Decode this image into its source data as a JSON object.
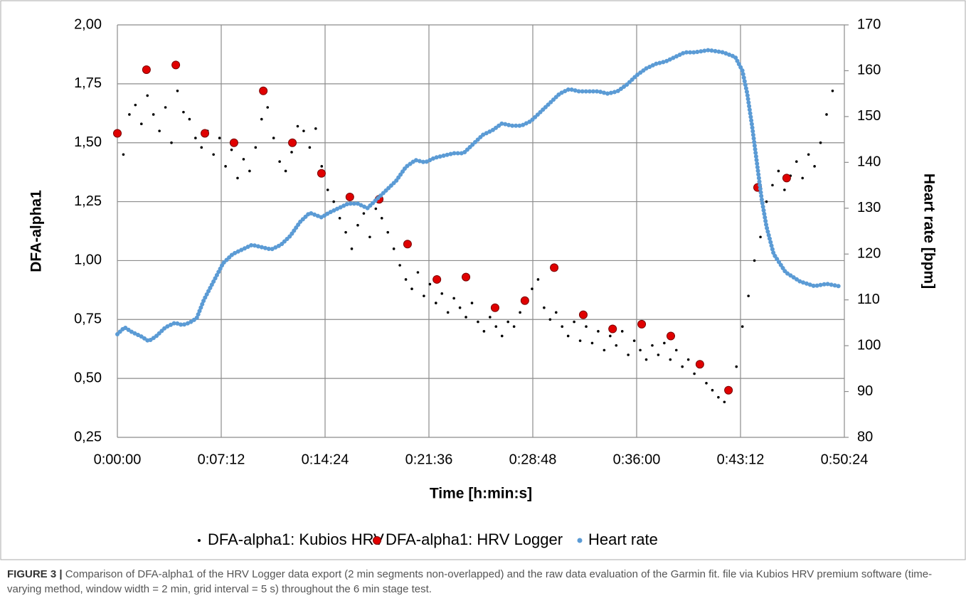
{
  "chart_data": {
    "type": "scatter",
    "x_label": "Time [h:min:s]",
    "y_label": "DFA-alpha1",
    "y2_label": "Heart rate [bpm]",
    "xlim": [
      0,
      3024
    ],
    "xticks": [
      {
        "value": 0,
        "label": "0:00:00"
      },
      {
        "value": 432,
        "label": "0:07:12"
      },
      {
        "value": 864,
        "label": "0:14:24"
      },
      {
        "value": 1296,
        "label": "0:21:36"
      },
      {
        "value": 1728,
        "label": "0:28:48"
      },
      {
        "value": 2160,
        "label": "0:36:00"
      },
      {
        "value": 2592,
        "label": "0:43:12"
      },
      {
        "value": 3024,
        "label": "0:50:24"
      }
    ],
    "ylim": [
      0.25,
      2.0
    ],
    "yticks": [
      {
        "value": 0.25,
        "label": "0,25"
      },
      {
        "value": 0.5,
        "label": "0,50"
      },
      {
        "value": 0.75,
        "label": "0,75"
      },
      {
        "value": 1.0,
        "label": "1,00"
      },
      {
        "value": 1.25,
        "label": "1,25"
      },
      {
        "value": 1.5,
        "label": "1,50"
      },
      {
        "value": 1.75,
        "label": "1,75"
      },
      {
        "value": 2.0,
        "label": "2,00"
      }
    ],
    "y2lim": [
      80,
      170
    ],
    "y2ticks": [
      80,
      90,
      100,
      110,
      120,
      130,
      140,
      150,
      160,
      170
    ],
    "grid": true,
    "legend": "bottom",
    "series": [
      {
        "name": "DFA-alpha1: Kubios HRV",
        "color": "#000000",
        "x": [
          0,
          25,
          50,
          75,
          100,
          125,
          150,
          175,
          200,
          225,
          250,
          275,
          300,
          325,
          350,
          375,
          400,
          425,
          450,
          475,
          500,
          525,
          550,
          575,
          600,
          625,
          650,
          675,
          700,
          725,
          750,
          775,
          800,
          825,
          850,
          875,
          900,
          925,
          950,
          975,
          1000,
          1025,
          1050,
          1075,
          1100,
          1125,
          1150,
          1175,
          1200,
          1225,
          1250,
          1275,
          1300,
          1325,
          1350,
          1375,
          1400,
          1425,
          1450,
          1475,
          1500,
          1525,
          1550,
          1575,
          1600,
          1625,
          1650,
          1675,
          1700,
          1725,
          1750,
          1775,
          1800,
          1825,
          1850,
          1875,
          1900,
          1925,
          1950,
          1975,
          2000,
          2025,
          2050,
          2075,
          2100,
          2125,
          2150,
          2175,
          2200,
          2225,
          2250,
          2275,
          2300,
          2325,
          2350,
          2375,
          2400,
          2425,
          2450,
          2475,
          2500,
          2525,
          2550,
          2575,
          2600,
          2625,
          2650,
          2675,
          2700,
          2725,
          2750,
          2775,
          2800,
          2825,
          2850,
          2875,
          2900,
          2925,
          2950,
          2975
        ],
        "values": [
          1.55,
          1.45,
          1.62,
          1.66,
          1.58,
          1.7,
          1.62,
          1.55,
          1.65,
          1.5,
          1.72,
          1.63,
          1.6,
          1.52,
          1.48,
          1.55,
          1.45,
          1.52,
          1.4,
          1.47,
          1.35,
          1.43,
          1.38,
          1.48,
          1.6,
          1.65,
          1.52,
          1.42,
          1.38,
          1.46,
          1.57,
          1.55,
          1.48,
          1.56,
          1.4,
          1.3,
          1.25,
          1.18,
          1.12,
          1.05,
          1.15,
          1.2,
          1.1,
          1.22,
          1.18,
          1.12,
          1.05,
          0.98,
          0.92,
          0.88,
          0.95,
          0.85,
          0.9,
          0.82,
          0.86,
          0.78,
          0.84,
          0.8,
          0.76,
          0.82,
          0.74,
          0.7,
          0.76,
          0.72,
          0.68,
          0.74,
          0.72,
          0.78,
          0.82,
          0.88,
          0.92,
          0.8,
          0.75,
          0.78,
          0.72,
          0.68,
          0.74,
          0.66,
          0.72,
          0.65,
          0.7,
          0.62,
          0.68,
          0.64,
          0.7,
          0.6,
          0.66,
          0.62,
          0.58,
          0.64,
          0.6,
          0.65,
          0.58,
          0.62,
          0.55,
          0.58,
          0.52,
          0.55,
          0.48,
          0.45,
          0.42,
          0.4,
          0.45,
          0.55,
          0.72,
          0.85,
          1.0,
          1.1,
          1.25,
          1.32,
          1.38,
          1.3,
          1.36,
          1.42,
          1.35,
          1.45,
          1.4,
          1.5,
          1.62,
          1.72
        ]
      },
      {
        "name": "DFA-alpha1: HRV Logger",
        "color": "#e00000",
        "x": [
          0,
          121,
          243,
          364,
          485,
          607,
          728,
          849,
          967,
          1089,
          1207,
          1329,
          1450,
          1571,
          1695,
          1817,
          1938,
          2060,
          2181,
          2302,
          2423,
          2542,
          2663,
          2784
        ],
        "values": [
          1.54,
          1.81,
          1.83,
          1.54,
          1.5,
          1.72,
          1.5,
          1.37,
          1.27,
          1.26,
          1.07,
          0.92,
          0.93,
          0.8,
          0.83,
          0.97,
          0.77,
          0.71,
          0.73,
          0.68,
          0.56,
          0.45,
          1.31,
          1.35
        ]
      },
      {
        "name": "Heart rate",
        "color": "#5b9bd5",
        "axis": "y2",
        "x": [
          0,
          30,
          60,
          100,
          130,
          160,
          200,
          240,
          270,
          300,
          330,
          360,
          400,
          440,
          480,
          520,
          560,
          600,
          640,
          680,
          720,
          760,
          800,
          850,
          880,
          920,
          960,
          1000,
          1040,
          1080,
          1120,
          1160,
          1200,
          1240,
          1280,
          1320,
          1360,
          1400,
          1440,
          1480,
          1520,
          1560,
          1600,
          1640,
          1680,
          1720,
          1760,
          1800,
          1840,
          1880,
          1920,
          1960,
          2000,
          2040,
          2080,
          2120,
          2160,
          2200,
          2240,
          2280,
          2320,
          2360,
          2400,
          2460,
          2520,
          2570,
          2600,
          2620,
          2640,
          2660,
          2680,
          2700,
          2730,
          2780,
          2840,
          2900,
          2950,
          3000
        ],
        "values": [
          102.5,
          104,
          103,
          102,
          101,
          102,
          104,
          105,
          104.5,
          105,
          106,
          110,
          114,
          118,
          120,
          121,
          122,
          121.5,
          121,
          122,
          124,
          127,
          129,
          128,
          129,
          130,
          131,
          131,
          130,
          132,
          134,
          136,
          139,
          140.5,
          140,
          141,
          141.5,
          142,
          142,
          144,
          146,
          147,
          148.5,
          148,
          148,
          149,
          151,
          153,
          155,
          156,
          155.5,
          155.5,
          155.5,
          155,
          155.5,
          157,
          159,
          160.5,
          161.5,
          162,
          163,
          164,
          164,
          164.5,
          164,
          163,
          160,
          155,
          148,
          140,
          132,
          126,
          120,
          116,
          114,
          113,
          113.5,
          113
        ]
      }
    ]
  },
  "caption": {
    "label": "FIGURE 3 |",
    "text": "Comparison of DFA-alpha1 of the HRV Logger data export (2 min segments non-overlapped) and the raw data evaluation of the Garmin fit. file via Kubios HRV premium software (time-varying method, window width = 2 min, grid interval = 5 s) throughout the 6 min stage test."
  }
}
